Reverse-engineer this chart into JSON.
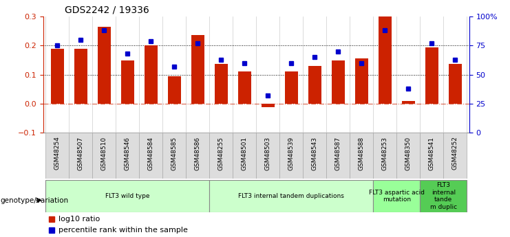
{
  "title": "GDS2242 / 19336",
  "samples": [
    "GSM48254",
    "GSM48507",
    "GSM48510",
    "GSM48546",
    "GSM48584",
    "GSM48585",
    "GSM48586",
    "GSM48255",
    "GSM48501",
    "GSM48503",
    "GSM48539",
    "GSM48543",
    "GSM48587",
    "GSM48588",
    "GSM48253",
    "GSM48350",
    "GSM48541",
    "GSM48252"
  ],
  "log10_ratio": [
    0.19,
    0.19,
    0.265,
    0.148,
    0.2,
    0.095,
    0.237,
    0.137,
    0.11,
    -0.012,
    0.11,
    0.13,
    0.148,
    0.155,
    0.3,
    0.01,
    0.195,
    0.137
  ],
  "percentile_rank_pct": [
    75,
    80,
    88,
    68,
    79,
    57,
    77,
    63,
    60,
    32,
    60,
    65,
    70,
    60,
    88,
    38,
    77,
    63
  ],
  "bar_color": "#cc2200",
  "dot_color": "#0000cc",
  "groups": [
    {
      "label": "FLT3 wild type",
      "start": 0,
      "end": 7,
      "color": "#ccffcc"
    },
    {
      "label": "FLT3 internal tandem duplications",
      "start": 7,
      "end": 14,
      "color": "#ccffcc"
    },
    {
      "label": "FLT3 aspartic acid\nmutation",
      "start": 14,
      "end": 16,
      "color": "#99ff99"
    },
    {
      "label": "FLT3\ninternal\ntande\nm duplic",
      "start": 16,
      "end": 18,
      "color": "#55cc55"
    }
  ],
  "ylim_left": [
    -0.1,
    0.3
  ],
  "ylim_right": [
    0,
    100
  ],
  "yticks_left": [
    -0.1,
    0.0,
    0.1,
    0.2,
    0.3
  ],
  "yticks_right": [
    0,
    25,
    50,
    75,
    100
  ],
  "ytick_labels_right": [
    "0",
    "25",
    "50",
    "75",
    "100%"
  ],
  "hlines": [
    0.1,
    0.2
  ],
  "zero_line": 0.0,
  "legend_items": [
    {
      "label": "log10 ratio",
      "color": "#cc2200"
    },
    {
      "label": "percentile rank within the sample",
      "color": "#0000cc"
    }
  ],
  "genotype_label": "genotype/variation"
}
